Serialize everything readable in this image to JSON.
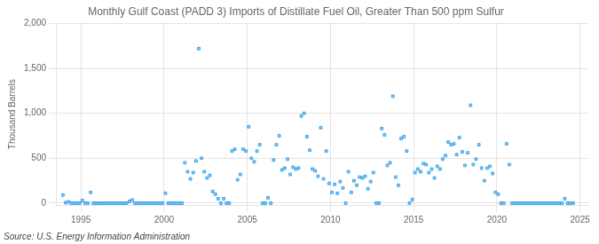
{
  "chart_data": {
    "type": "scatter",
    "title": "Monthly Gulf Coast (PADD 3) Imports of Distillate Fuel Oil, Greater Than 500 ppm Sulfur",
    "y_label": "Thousand Barrels",
    "annotations": [
      "Source: U.S. Energy Information Administration"
    ],
    "marker": "square",
    "grid": true,
    "xlim": [
      1993.5,
      2025.5
    ],
    "xticks": [
      1995,
      2000,
      2005,
      2010,
      2015,
      2020,
      2025
    ],
    "ylim": [
      -20,
      2000
    ],
    "yticks": [
      0,
      500,
      {
        "value": 1000,
        "label": "1,000"
      },
      {
        "value": 1500,
        "label": "1,500"
      },
      {
        "value": 2000,
        "label": "2,000"
      }
    ],
    "x": [
      1993.917,
      1994.083,
      1994.25,
      1994.417,
      1994.583,
      1994.75,
      1994.917,
      1995.083,
      1995.25,
      1995.417,
      1995.583,
      1995.75,
      1995.917,
      1996.083,
      1996.25,
      1996.417,
      1996.583,
      1996.75,
      1996.917,
      1997.083,
      1997.25,
      1997.417,
      1997.583,
      1997.75,
      1997.917,
      1998.083,
      1998.25,
      1998.417,
      1998.583,
      1998.75,
      1998.917,
      1999.083,
      1999.25,
      1999.417,
      1999.583,
      1999.75,
      1999.917,
      2000.083,
      2000.25,
      2000.417,
      2000.583,
      2000.75,
      2000.917,
      2001.083,
      2001.25,
      2001.417,
      2001.583,
      2001.75,
      2001.917,
      2002.083,
      2002.25,
      2002.417,
      2002.583,
      2002.75,
      2002.917,
      2003.083,
      2003.25,
      2003.417,
      2003.583,
      2003.75,
      2003.917,
      2004.083,
      2004.25,
      2004.417,
      2004.583,
      2004.75,
      2004.917,
      2005.083,
      2005.25,
      2005.417,
      2005.583,
      2005.75,
      2005.917,
      2006.083,
      2006.25,
      2006.417,
      2006.583,
      2006.75,
      2006.917,
      2007.083,
      2007.25,
      2007.417,
      2007.583,
      2007.75,
      2007.917,
      2008.083,
      2008.25,
      2008.417,
      2008.583,
      2008.75,
      2008.917,
      2009.083,
      2009.25,
      2009.417,
      2009.583,
      2009.75,
      2009.917,
      2010.083,
      2010.25,
      2010.417,
      2010.583,
      2010.75,
      2010.917,
      2011.083,
      2011.25,
      2011.417,
      2011.583,
      2011.75,
      2011.917,
      2012.083,
      2012.25,
      2012.417,
      2012.583,
      2012.75,
      2012.917,
      2013.083,
      2013.25,
      2013.417,
      2013.583,
      2013.75,
      2013.917,
      2014.083,
      2014.25,
      2014.417,
      2014.583,
      2014.75,
      2014.917,
      2015.083,
      2015.25,
      2015.417,
      2015.583,
      2015.75,
      2015.917,
      2016.083,
      2016.25,
      2016.417,
      2016.583,
      2016.75,
      2016.917,
      2017.083,
      2017.25,
      2017.417,
      2017.583,
      2017.75,
      2017.917,
      2018.083,
      2018.25,
      2018.417,
      2018.583,
      2018.75,
      2018.917,
      2019.083,
      2019.25,
      2019.417,
      2019.583,
      2019.75,
      2019.917,
      2020.083,
      2020.25,
      2020.417,
      2020.583,
      2020.75,
      2020.917,
      2021.083,
      2021.25,
      2021.417,
      2021.583,
      2021.75,
      2021.917,
      2022.083,
      2022.25,
      2022.417,
      2022.583,
      2022.75,
      2022.917,
      2023.083,
      2023.25,
      2023.417,
      2023.583,
      2023.75,
      2023.917,
      2024.083,
      2024.25,
      2024.417,
      2024.583
    ],
    "values": [
      90,
      5,
      15,
      0,
      0,
      0,
      0,
      30,
      0,
      0,
      120,
      0,
      0,
      0,
      0,
      0,
      0,
      0,
      0,
      0,
      0,
      0,
      0,
      0,
      20,
      35,
      0,
      0,
      0,
      0,
      0,
      0,
      0,
      0,
      0,
      0,
      0,
      110,
      0,
      0,
      0,
      0,
      0,
      0,
      450,
      350,
      270,
      340,
      470,
      1720,
      500,
      350,
      280,
      310,
      130,
      100,
      50,
      0,
      50,
      0,
      0,
      580,
      600,
      260,
      320,
      600,
      580,
      850,
      500,
      460,
      580,
      650,
      0,
      0,
      60,
      0,
      480,
      650,
      750,
      370,
      390,
      490,
      320,
      400,
      380,
      390,
      970,
      1000,
      740,
      590,
      380,
      360,
      300,
      840,
      270,
      580,
      220,
      120,
      210,
      110,
      240,
      170,
      0,
      350,
      120,
      250,
      200,
      290,
      280,
      300,
      160,
      240,
      340,
      0,
      0,
      830,
      760,
      420,
      450,
      1190,
      290,
      200,
      720,
      740,
      580,
      0,
      40,
      340,
      380,
      350,
      440,
      430,
      340,
      380,
      280,
      410,
      380,
      490,
      530,
      680,
      650,
      660,
      540,
      730,
      570,
      420,
      560,
      1090,
      430,
      490,
      650,
      390,
      250,
      390,
      410,
      330,
      120,
      100,
      0,
      0,
      660,
      430,
      0,
      0,
      0,
      0,
      0,
      0,
      0,
      0,
      0,
      0,
      0,
      0,
      0,
      0,
      0,
      0,
      0,
      0,
      0,
      50,
      0,
      0,
      0
    ]
  }
}
